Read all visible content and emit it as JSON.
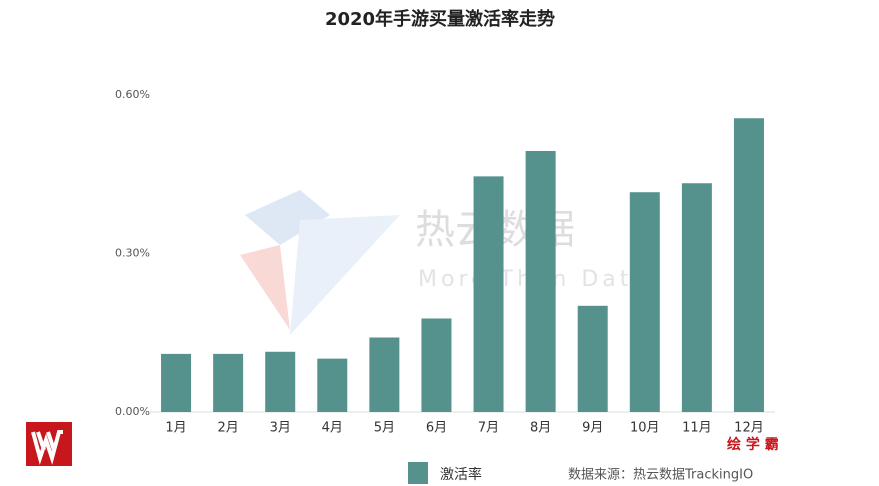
{
  "chart_data": {
    "type": "bar",
    "title": "2020年手游买量激活率走势",
    "categories": [
      "1月",
      "2月",
      "3月",
      "4月",
      "5月",
      "6月",
      "7月",
      "8月",
      "9月",
      "10月",
      "11月",
      "12月"
    ],
    "series": [
      {
        "name": "激活率",
        "color": "#55928d",
        "values": [
          0.11,
          0.11,
          0.114,
          0.101,
          0.141,
          0.177,
          0.446,
          0.494,
          0.201,
          0.416,
          0.433,
          0.556
        ]
      }
    ],
    "ylim": [
      0,
      0.6
    ],
    "yticks": [
      {
        "value": 0,
        "label": "0.00%"
      },
      {
        "value": 0.3,
        "label": "0.30%"
      },
      {
        "value": 0.6,
        "label": "0.60%"
      }
    ],
    "grid": false,
    "source": "数据来源：热云数据TrackingIO",
    "watermark": "热云数据",
    "watermark_subtitle": "More Than Data",
    "brand": "绘 学 霸"
  }
}
